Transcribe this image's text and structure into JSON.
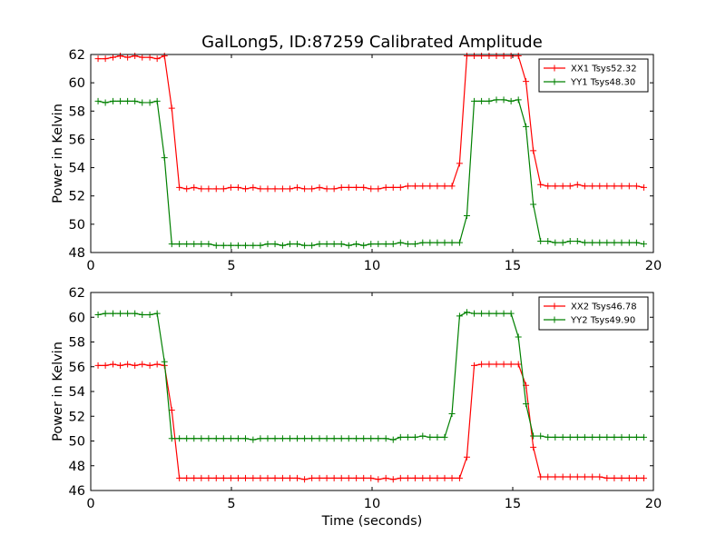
{
  "figure": {
    "title": "GalLong5, ID:87259 Calibrated Amplitude",
    "xlabel": "Time (seconds)"
  },
  "chart_data": [
    {
      "type": "line",
      "title": "GalLong5, ID:87259 Calibrated Amplitude",
      "xlabel": "",
      "ylabel": "Power in Kelvin",
      "xlim": [
        0,
        20
      ],
      "ylim": [
        48,
        62
      ],
      "xticks": [
        0,
        5,
        10,
        15,
        20
      ],
      "yticks": [
        48,
        50,
        52,
        54,
        56,
        58,
        60,
        62
      ],
      "grid": false,
      "legend_position": "top-right",
      "x": [
        0.26,
        0.52,
        0.79,
        1.05,
        1.31,
        1.57,
        1.83,
        2.1,
        2.36,
        2.62,
        2.88,
        3.15,
        3.41,
        3.67,
        3.93,
        4.19,
        4.46,
        4.72,
        4.98,
        5.24,
        5.5,
        5.77,
        6.03,
        6.29,
        6.55,
        6.82,
        7.08,
        7.34,
        7.6,
        7.86,
        8.13,
        8.39,
        8.65,
        8.91,
        9.17,
        9.44,
        9.7,
        9.96,
        10.22,
        10.49,
        10.75,
        11.01,
        11.27,
        11.53,
        11.8,
        12.06,
        12.32,
        12.58,
        12.84,
        13.11,
        13.37,
        13.63,
        13.89,
        14.16,
        14.42,
        14.68,
        14.94,
        15.2,
        15.47,
        15.73,
        15.99,
        16.25,
        16.51,
        16.78,
        17.04,
        17.3,
        17.56,
        17.83,
        18.09,
        18.35,
        18.61,
        18.87,
        19.14,
        19.4,
        19.66
      ],
      "series": [
        {
          "name": "XX1 Tsys52.32",
          "color": "#ff0000",
          "values": [
            61.7,
            61.7,
            61.8,
            61.9,
            61.8,
            61.9,
            61.8,
            61.8,
            61.7,
            61.9,
            58.2,
            52.6,
            52.5,
            52.6,
            52.5,
            52.5,
            52.5,
            52.5,
            52.6,
            52.6,
            52.5,
            52.6,
            52.5,
            52.5,
            52.5,
            52.5,
            52.5,
            52.6,
            52.5,
            52.5,
            52.6,
            52.5,
            52.5,
            52.6,
            52.6,
            52.6,
            52.6,
            52.5,
            52.5,
            52.6,
            52.6,
            52.6,
            52.7,
            52.7,
            52.7,
            52.7,
            52.7,
            52.7,
            52.7,
            54.3,
            61.9,
            61.9,
            61.9,
            61.9,
            61.9,
            61.9,
            61.9,
            61.9,
            60.1,
            55.2,
            52.8,
            52.7,
            52.7,
            52.7,
            52.7,
            52.8,
            52.7,
            52.7,
            52.7,
            52.7,
            52.7,
            52.7,
            52.7,
            52.7,
            52.6
          ]
        },
        {
          "name": "YY1 Tsys48.30",
          "color": "#008000",
          "values": [
            58.7,
            58.6,
            58.7,
            58.7,
            58.7,
            58.7,
            58.6,
            58.6,
            58.7,
            54.7,
            48.6,
            48.6,
            48.6,
            48.6,
            48.6,
            48.6,
            48.5,
            48.5,
            48.5,
            48.5,
            48.5,
            48.5,
            48.5,
            48.6,
            48.6,
            48.5,
            48.6,
            48.6,
            48.5,
            48.5,
            48.6,
            48.6,
            48.6,
            48.6,
            48.5,
            48.6,
            48.5,
            48.6,
            48.6,
            48.6,
            48.6,
            48.7,
            48.6,
            48.6,
            48.7,
            48.7,
            48.7,
            48.7,
            48.7,
            48.7,
            50.6,
            58.7,
            58.7,
            58.7,
            58.8,
            58.8,
            58.7,
            58.8,
            56.9,
            51.4,
            48.8,
            48.8,
            48.7,
            48.7,
            48.8,
            48.8,
            48.7,
            48.7,
            48.7,
            48.7,
            48.7,
            48.7,
            48.7,
            48.7,
            48.6
          ]
        }
      ]
    },
    {
      "type": "line",
      "title": "",
      "xlabel": "Time (seconds)",
      "ylabel": "Power in Kelvin",
      "xlim": [
        0,
        20
      ],
      "ylim": [
        46,
        62
      ],
      "xticks": [
        0,
        5,
        10,
        15,
        20
      ],
      "yticks": [
        46,
        48,
        50,
        52,
        54,
        56,
        58,
        60,
        62
      ],
      "grid": false,
      "legend_position": "top-right",
      "x": [
        0.26,
        0.52,
        0.79,
        1.05,
        1.31,
        1.57,
        1.83,
        2.1,
        2.36,
        2.62,
        2.88,
        3.15,
        3.41,
        3.67,
        3.93,
        4.19,
        4.46,
        4.72,
        4.98,
        5.24,
        5.5,
        5.77,
        6.03,
        6.29,
        6.55,
        6.82,
        7.08,
        7.34,
        7.6,
        7.86,
        8.13,
        8.39,
        8.65,
        8.91,
        9.17,
        9.44,
        9.7,
        9.96,
        10.22,
        10.49,
        10.75,
        11.01,
        11.27,
        11.53,
        11.8,
        12.06,
        12.32,
        12.58,
        12.84,
        13.11,
        13.37,
        13.63,
        13.89,
        14.16,
        14.42,
        14.68,
        14.94,
        15.2,
        15.47,
        15.73,
        15.99,
        16.25,
        16.51,
        16.78,
        17.04,
        17.3,
        17.56,
        17.83,
        18.09,
        18.35,
        18.61,
        18.87,
        19.14,
        19.4,
        19.66
      ],
      "series": [
        {
          "name": "XX2 Tsys46.78",
          "color": "#ff0000",
          "values": [
            56.1,
            56.1,
            56.2,
            56.1,
            56.2,
            56.1,
            56.2,
            56.1,
            56.2,
            56.1,
            52.5,
            47.0,
            47.0,
            47.0,
            47.0,
            47.0,
            47.0,
            47.0,
            47.0,
            47.0,
            47.0,
            47.0,
            47.0,
            47.0,
            47.0,
            47.0,
            47.0,
            47.0,
            46.9,
            47.0,
            47.0,
            47.0,
            47.0,
            47.0,
            47.0,
            47.0,
            47.0,
            47.0,
            46.9,
            47.0,
            46.9,
            47.0,
            47.0,
            47.0,
            47.0,
            47.0,
            47.0,
            47.0,
            47.0,
            47.0,
            48.7,
            56.1,
            56.2,
            56.2,
            56.2,
            56.2,
            56.2,
            56.2,
            54.5,
            49.5,
            47.1,
            47.1,
            47.1,
            47.1,
            47.1,
            47.1,
            47.1,
            47.1,
            47.1,
            47.0,
            47.0,
            47.0,
            47.0,
            47.0,
            47.0
          ]
        },
        {
          "name": "YY2 Tsys49.90",
          "color": "#008000",
          "values": [
            60.2,
            60.3,
            60.3,
            60.3,
            60.3,
            60.3,
            60.2,
            60.2,
            60.3,
            56.4,
            50.2,
            50.2,
            50.2,
            50.2,
            50.2,
            50.2,
            50.2,
            50.2,
            50.2,
            50.2,
            50.2,
            50.1,
            50.2,
            50.2,
            50.2,
            50.2,
            50.2,
            50.2,
            50.2,
            50.2,
            50.2,
            50.2,
            50.2,
            50.2,
            50.2,
            50.2,
            50.2,
            50.2,
            50.2,
            50.2,
            50.1,
            50.3,
            50.3,
            50.3,
            50.4,
            50.3,
            50.3,
            50.3,
            52.2,
            60.1,
            60.4,
            60.3,
            60.3,
            60.3,
            60.3,
            60.3,
            60.3,
            58.4,
            53.0,
            50.4,
            50.4,
            50.3,
            50.3,
            50.3,
            50.3,
            50.3,
            50.3,
            50.3,
            50.3,
            50.3,
            50.3,
            50.3,
            50.3,
            50.3,
            50.3
          ]
        }
      ]
    }
  ]
}
